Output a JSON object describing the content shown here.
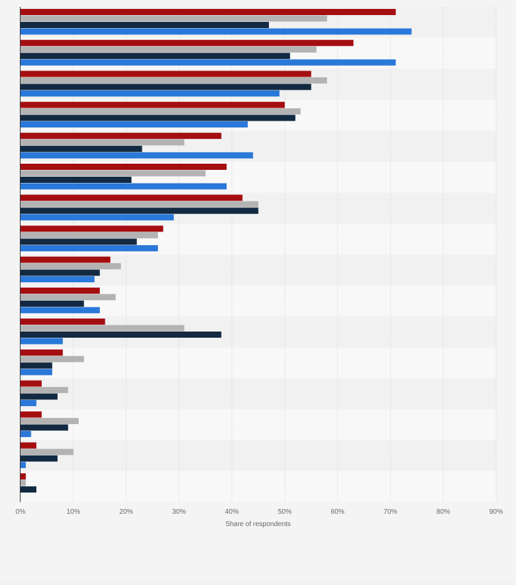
{
  "chart_data": {
    "type": "bar",
    "orientation": "horizontal",
    "xlabel": "Share of respondents",
    "xlim": [
      0,
      90
    ],
    "xticks": [
      "0%",
      "10%",
      "20%",
      "30%",
      "40%",
      "50%",
      "60%",
      "70%",
      "80%",
      "90%"
    ],
    "grid": true,
    "legend": "none",
    "series": [
      {
        "color": "#a50e11",
        "values": [
          71,
          63,
          55,
          50,
          38,
          39,
          42,
          27,
          17,
          15,
          16,
          8,
          4,
          4,
          3,
          1
        ]
      },
      {
        "color": "#b3b3b3",
        "values": [
          58,
          56,
          58,
          53,
          31,
          35,
          45,
          26,
          19,
          18,
          31,
          12,
          9,
          11,
          10,
          1
        ]
      },
      {
        "color": "#122a42",
        "values": [
          47,
          51,
          55,
          52,
          23,
          21,
          45,
          22,
          15,
          12,
          38,
          6,
          7,
          9,
          7,
          3
        ]
      },
      {
        "color": "#2a78d9",
        "values": [
          74,
          71,
          49,
          43,
          44,
          39,
          29,
          26,
          14,
          15,
          8,
          6,
          3,
          2,
          1,
          0
        ]
      }
    ]
  }
}
